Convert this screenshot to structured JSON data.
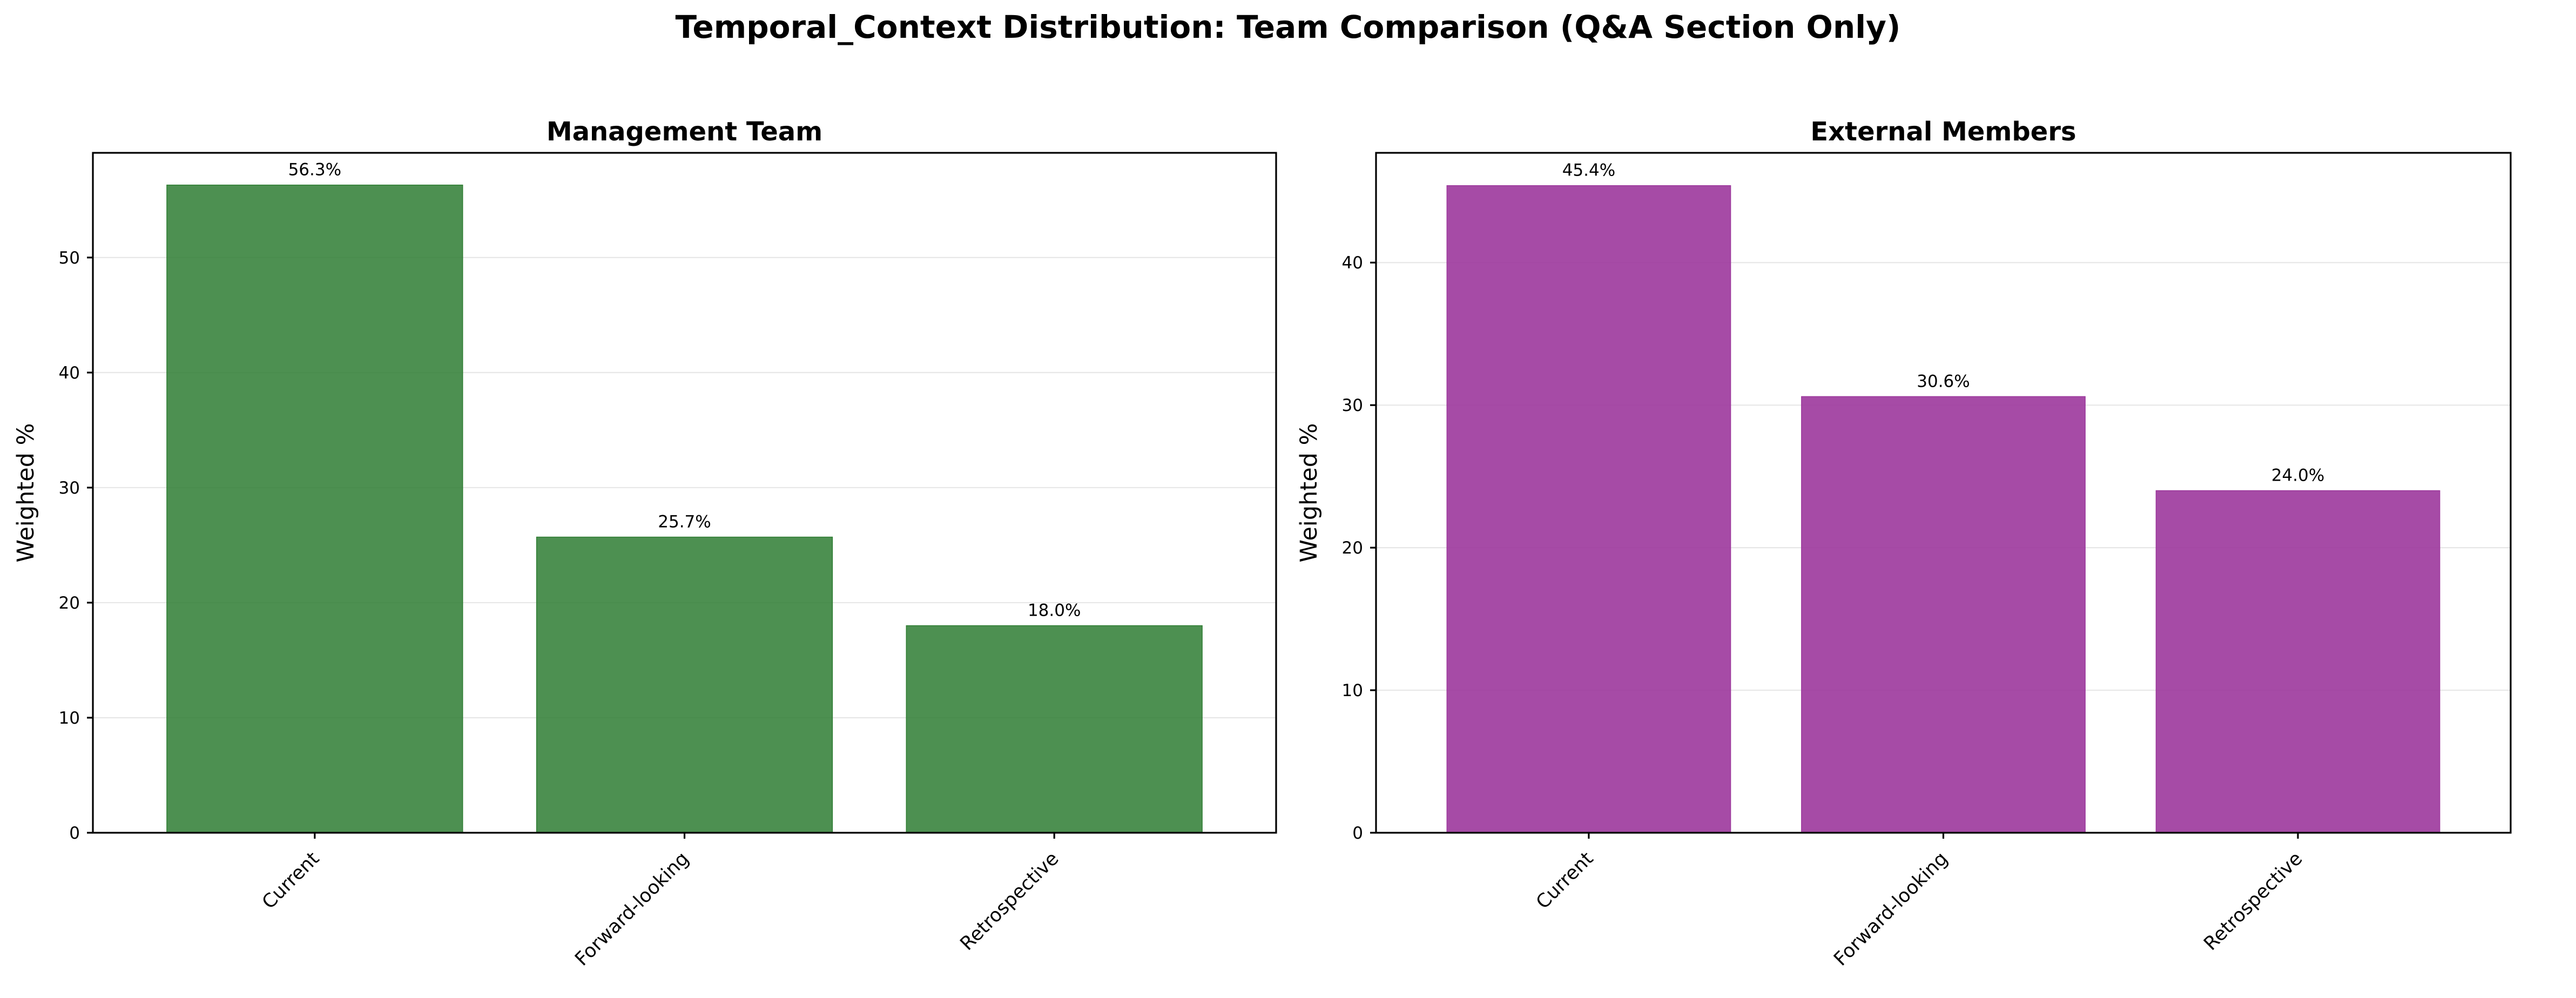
{
  "figure": {
    "suptitle": "Temporal_Context Distribution: Team Comparison (Q&A Section Only)"
  },
  "chart_data": [
    {
      "type": "bar",
      "title": "Management Team",
      "xlabel": "",
      "ylabel": "Weighted %",
      "categories": [
        "Current",
        "Forward-looking",
        "Retrospective"
      ],
      "values": [
        56.3,
        25.7,
        18.0
      ],
      "value_labels": [
        "56.3%",
        "25.7%",
        "18.0%"
      ],
      "ylim": [
        0,
        59.1
      ],
      "yticks": [
        0,
        10,
        20,
        30,
        40,
        50
      ],
      "ytick_labels": [
        "0",
        "10",
        "20",
        "30",
        "40",
        "50"
      ],
      "bar_color": "#2e7d32",
      "bar_opacity": 0.85,
      "grid": "y-axis, light gray",
      "legend": "none"
    },
    {
      "type": "bar",
      "title": "External Members",
      "xlabel": "",
      "ylabel": "Weighted %",
      "categories": [
        "Current",
        "Forward-looking",
        "Retrospective"
      ],
      "values": [
        45.4,
        30.6,
        24.0
      ],
      "value_labels": [
        "45.4%",
        "30.6%",
        "24.0%"
      ],
      "ylim": [
        0,
        47.7
      ],
      "yticks": [
        0,
        10,
        20,
        30,
        40
      ],
      "ytick_labels": [
        "0",
        "10",
        "20",
        "30",
        "40"
      ],
      "bar_color": "#9c379c",
      "bar_opacity": 0.9,
      "grid": "y-axis, light gray",
      "legend": "none"
    }
  ]
}
